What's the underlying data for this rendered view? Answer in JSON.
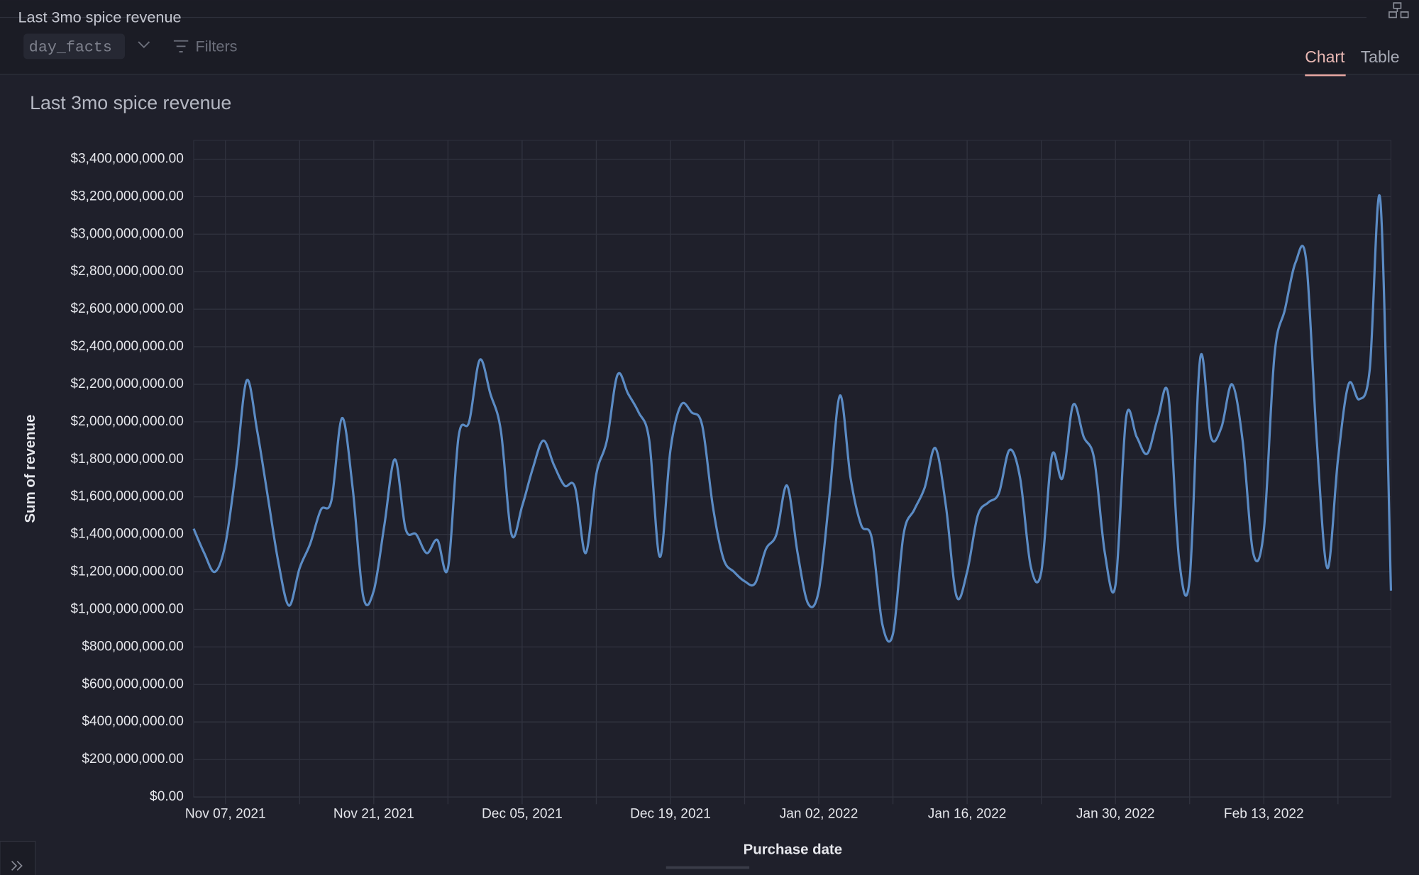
{
  "header": {
    "title": "Last 3mo spice revenue",
    "dataset": "day_facts",
    "filters": "Filters",
    "tabs": [
      "Chart",
      "Table"
    ]
  },
  "chart_data": {
    "type": "line",
    "title": "Last 3mo spice revenue",
    "xlabel": "Purchase date",
    "ylabel": "Sum of revenue",
    "x": [
      "2021-11-04",
      "2021-11-05",
      "2021-11-06",
      "2021-11-07",
      "2021-11-08",
      "2021-11-09",
      "2021-11-10",
      "2021-11-11",
      "2021-11-12",
      "2021-11-13",
      "2021-11-14",
      "2021-11-15",
      "2021-11-16",
      "2021-11-17",
      "2021-11-18",
      "2021-11-19",
      "2021-11-20",
      "2021-11-21",
      "2021-11-22",
      "2021-11-23",
      "2021-11-24",
      "2021-11-25",
      "2021-11-26",
      "2021-11-27",
      "2021-11-28",
      "2021-11-29",
      "2021-11-30",
      "2021-12-01",
      "2021-12-02",
      "2021-12-03",
      "2021-12-04",
      "2021-12-05",
      "2021-12-06",
      "2021-12-07",
      "2021-12-08",
      "2021-12-09",
      "2021-12-10",
      "2021-12-11",
      "2021-12-12",
      "2021-12-13",
      "2021-12-14",
      "2021-12-15",
      "2021-12-16",
      "2021-12-17",
      "2021-12-18",
      "2021-12-19",
      "2021-12-20",
      "2021-12-21",
      "2021-12-22",
      "2021-12-23",
      "2021-12-24",
      "2021-12-25",
      "2021-12-26",
      "2021-12-27",
      "2021-12-28",
      "2021-12-29",
      "2021-12-30",
      "2021-12-31",
      "2022-01-01",
      "2022-01-02",
      "2022-01-03",
      "2022-01-04",
      "2022-01-05",
      "2022-01-06",
      "2022-01-07",
      "2022-01-08",
      "2022-01-09",
      "2022-01-10",
      "2022-01-11",
      "2022-01-12",
      "2022-01-13",
      "2022-01-14",
      "2022-01-15",
      "2022-01-16",
      "2022-01-17",
      "2022-01-18",
      "2022-01-19",
      "2022-01-20",
      "2022-01-21",
      "2022-01-22",
      "2022-01-23",
      "2022-01-24",
      "2022-01-25",
      "2022-01-26",
      "2022-01-27",
      "2022-01-28",
      "2022-01-29",
      "2022-01-30",
      "2022-01-31",
      "2022-02-01",
      "2022-02-02",
      "2022-02-03",
      "2022-02-04",
      "2022-02-05",
      "2022-02-06",
      "2022-02-07",
      "2022-02-08",
      "2022-02-09",
      "2022-02-10",
      "2022-02-11",
      "2022-02-12",
      "2022-02-13",
      "2022-02-14",
      "2022-02-15",
      "2022-02-16",
      "2022-02-17",
      "2022-02-18",
      "2022-02-19",
      "2022-02-20",
      "2022-02-21",
      "2022-02-22",
      "2022-02-23",
      "2022-02-24",
      "2022-02-25"
    ],
    "series": [
      {
        "name": "Sum of revenue",
        "color": "#5b8bc4",
        "values": [
          1430000000,
          1300000000,
          1200000000,
          1350000000,
          1750000000,
          2220000000,
          1950000000,
          1600000000,
          1250000000,
          1020000000,
          1220000000,
          1350000000,
          1530000000,
          1580000000,
          2020000000,
          1650000000,
          1070000000,
          1100000000,
          1450000000,
          1800000000,
          1430000000,
          1400000000,
          1300000000,
          1370000000,
          1220000000,
          1920000000,
          2000000000,
          2330000000,
          2150000000,
          1950000000,
          1400000000,
          1550000000,
          1750000000,
          1900000000,
          1770000000,
          1660000000,
          1650000000,
          1300000000,
          1720000000,
          1900000000,
          2250000000,
          2150000000,
          2050000000,
          1900000000,
          1280000000,
          1850000000,
          2090000000,
          2050000000,
          1980000000,
          1550000000,
          1270000000,
          1200000000,
          1150000000,
          1140000000,
          1320000000,
          1400000000,
          1660000000,
          1300000000,
          1030000000,
          1100000000,
          1600000000,
          2140000000,
          1700000000,
          1450000000,
          1380000000,
          920000000,
          870000000,
          1400000000,
          1530000000,
          1650000000,
          1860000000,
          1550000000,
          1070000000,
          1200000000,
          1500000000,
          1570000000,
          1620000000,
          1850000000,
          1700000000,
          1230000000,
          1200000000,
          1820000000,
          1700000000,
          2090000000,
          1920000000,
          1800000000,
          1300000000,
          1130000000,
          2020000000,
          1920000000,
          1830000000,
          2020000000,
          2140000000,
          1270000000,
          1160000000,
          2340000000,
          1920000000,
          1970000000,
          2200000000,
          1900000000,
          1300000000,
          1420000000,
          2350000000,
          2600000000,
          2850000000,
          2860000000,
          1900000000,
          1220000000,
          1800000000,
          2200000000,
          2120000000,
          2280000000,
          3180000000,
          1100000000
        ]
      }
    ],
    "xlim": [
      "2021-11-04",
      "2022-02-25"
    ],
    "xticks": [
      {
        "value": "2021-11-07",
        "label": "Nov 07, 2021"
      },
      {
        "value": "2021-11-14"
      },
      {
        "value": "2021-11-21",
        "label": "Nov 21, 2021"
      },
      {
        "value": "2021-11-28"
      },
      {
        "value": "2021-12-05",
        "label": "Dec 05, 2021"
      },
      {
        "value": "2021-12-12"
      },
      {
        "value": "2021-12-19",
        "label": "Dec 19, 2021"
      },
      {
        "value": "2021-12-26"
      },
      {
        "value": "2022-01-02",
        "label": "Jan 02, 2022"
      },
      {
        "value": "2022-01-09"
      },
      {
        "value": "2022-01-16",
        "label": "Jan 16, 2022"
      },
      {
        "value": "2022-01-23"
      },
      {
        "value": "2022-01-30",
        "label": "Jan 30, 2022"
      },
      {
        "value": "2022-02-06"
      },
      {
        "value": "2022-02-13",
        "label": "Feb 13, 2022"
      },
      {
        "value": "2022-02-20"
      }
    ],
    "ylim": [
      0,
      3500000000
    ],
    "yticks": [
      {
        "value": 0,
        "label": "$0.00"
      },
      {
        "value": 200000000,
        "label": "$200,000,000.00"
      },
      {
        "value": 400000000,
        "label": "$400,000,000.00"
      },
      {
        "value": 600000000,
        "label": "$600,000,000.00"
      },
      {
        "value": 800000000,
        "label": "$800,000,000.00"
      },
      {
        "value": 1000000000,
        "label": "$1,000,000,000.00"
      },
      {
        "value": 1200000000,
        "label": "$1,200,000,000.00"
      },
      {
        "value": 1400000000,
        "label": "$1,400,000,000.00"
      },
      {
        "value": 1600000000,
        "label": "$1,600,000,000.00"
      },
      {
        "value": 1800000000,
        "label": "$1,800,000,000.00"
      },
      {
        "value": 2000000000,
        "label": "$2,000,000,000.00"
      },
      {
        "value": 2200000000,
        "label": "$2,200,000,000.00"
      },
      {
        "value": 2400000000,
        "label": "$2,400,000,000.00"
      },
      {
        "value": 2600000000,
        "label": "$2,600,000,000.00"
      },
      {
        "value": 2800000000,
        "label": "$2,800,000,000.00"
      },
      {
        "value": 3000000000,
        "label": "$3,000,000,000.00"
      },
      {
        "value": 3200000000,
        "label": "$3,200,000,000.00"
      },
      {
        "value": 3400000000,
        "label": "$3,400,000,000.00"
      }
    ],
    "grid": true
  }
}
